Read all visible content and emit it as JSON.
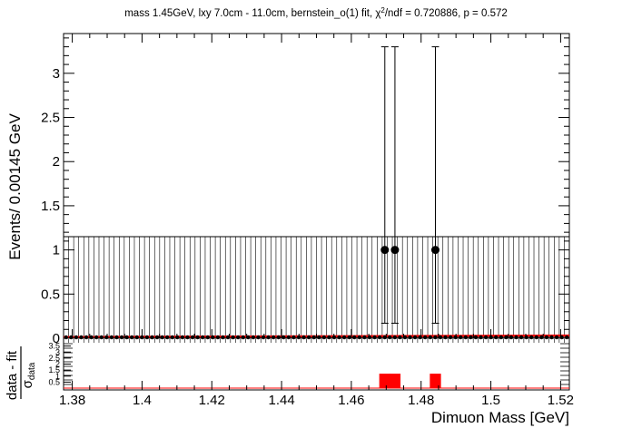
{
  "chart_data": [
    {
      "type": "scatter",
      "title": "mass 1.45GeV, lxy 7.0cm - 11.0cm, bernstein_o(1) fit, χ²/ndf = 0.720886, p = 0.572",
      "title_parts": {
        "before": "mass 1.45GeV, lxy 7.0cm - 11.0cm, bernstein_o(1) fit, χ",
        "sup": "2",
        "after": "/ndf = 0.720886, p = 0.572"
      },
      "ylabel": "Events/ 0.00145 GeV",
      "xlim": [
        1.3775,
        1.5225
      ],
      "ylim": [
        0,
        3.45
      ],
      "y_ticks": [
        0,
        0.5,
        1,
        1.5,
        2,
        2.5,
        3
      ],
      "y_tick_labels": [
        "0",
        "0.5",
        "1",
        "1.5",
        "2",
        "2.5",
        "3"
      ],
      "bin_width": 0.00145,
      "zero_bin_error_high": 1.15,
      "points": [
        {
          "x": 1.4696,
          "y": 1,
          "err_low": 0.83,
          "err_high": 2.3
        },
        {
          "x": 1.4725,
          "y": 1,
          "err_low": 0.83,
          "err_high": 2.3
        },
        {
          "x": 1.4841,
          "y": 1,
          "err_low": 0.83,
          "err_high": 2.3
        }
      ],
      "fit_curve": {
        "x": [
          1.3775,
          1.5225
        ],
        "y": [
          0.012,
          0.03
        ]
      },
      "colors": {
        "fit": "#ff0000",
        "data": "#000000"
      }
    },
    {
      "type": "bar",
      "ylabel_num": "data - fit",
      "ylabel_den": "σ",
      "ylabel_den_sub": "data",
      "ylim": [
        0,
        4
      ],
      "y_ticks": [
        0.5,
        1,
        1.5,
        2,
        2.5,
        3,
        3.5
      ],
      "y_tick_labels": [
        "0.5",
        "1",
        "1.5",
        "2",
        "2.5",
        "3",
        "3.5"
      ],
      "xlabel": "Dimuon Mass [GeV]",
      "xlim": [
        1.3775,
        1.5225
      ],
      "x_ticks": [
        1.38,
        1.4,
        1.42,
        1.44,
        1.46,
        1.48,
        1.5,
        1.52
      ],
      "x_tick_labels": [
        "1.38",
        "1.4",
        "1.42",
        "1.44",
        "1.46",
        "1.48",
        "1.5",
        "1.52"
      ],
      "residual_bars": [
        {
          "x": 1.4696,
          "value": 1.2
        },
        {
          "x": 1.4725,
          "value": 1.2
        },
        {
          "x": 1.4841,
          "value": 1.2
        }
      ],
      "colors": {
        "bars": "#ff0000"
      }
    }
  ]
}
